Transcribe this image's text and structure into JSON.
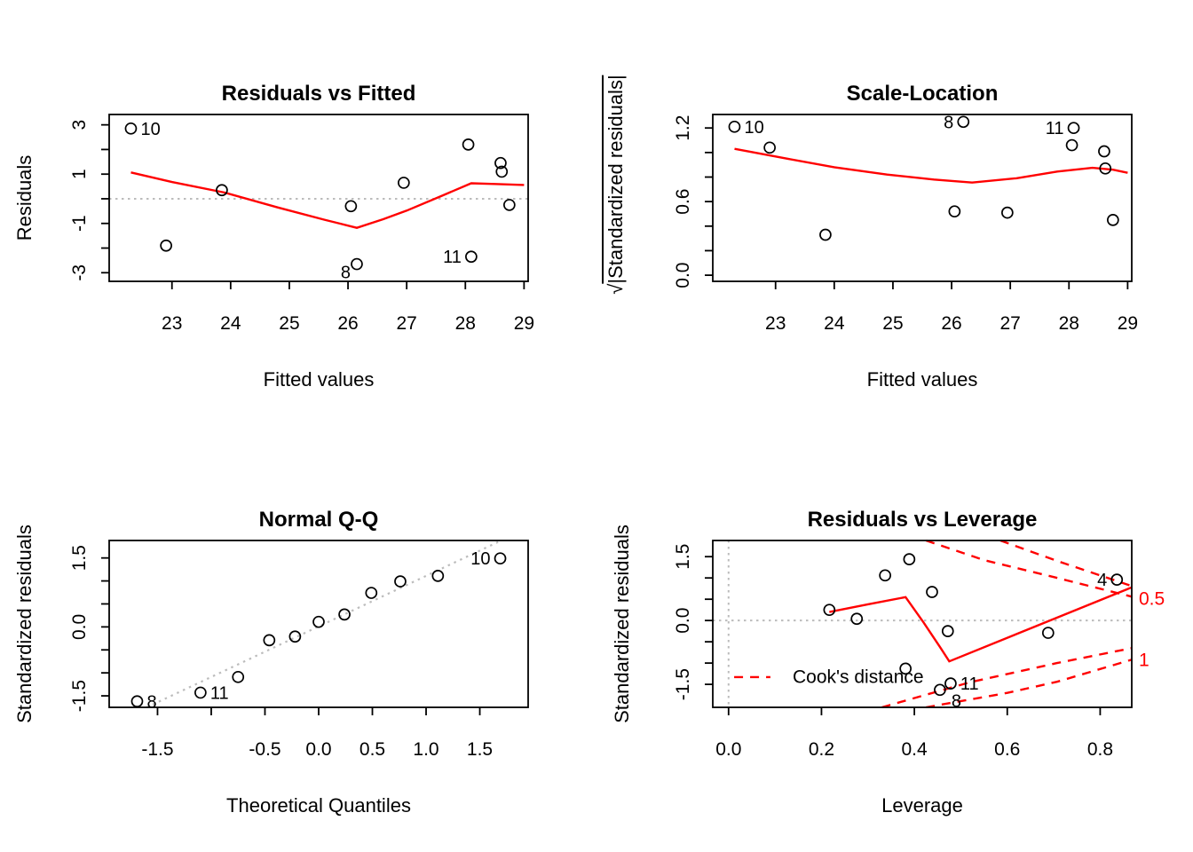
{
  "colors": {
    "points": "#000000",
    "smoother": "#ff0000",
    "cook": "#ff0000",
    "reference": "#bcbcbc",
    "text": "#000000",
    "background": "#ffffff"
  },
  "chart_data": [
    {
      "type": "scatter",
      "panel": "top-left",
      "title": "Residuals vs Fitted",
      "xlabel": "Fitted values",
      "ylabel": "Residuals",
      "xlim": [
        21.93,
        29.07
      ],
      "ylim": [
        -3.35,
        3.42
      ],
      "xticks": [
        23,
        24,
        25,
        26,
        27,
        28,
        29
      ],
      "xtick_labels": [
        "23",
        "24",
        "25",
        "26",
        "27",
        "28",
        "29"
      ],
      "yticks": [
        -3,
        -2,
        -1,
        0,
        1,
        2,
        3
      ],
      "ytick_labels": [
        "-3",
        "",
        "-1",
        "",
        "1",
        "",
        "3"
      ],
      "grid": false,
      "points": [
        {
          "x": 22.3,
          "y": 2.85,
          "label": "10",
          "side": "right"
        },
        {
          "x": 22.9,
          "y": -1.9
        },
        {
          "x": 23.85,
          "y": 0.35
        },
        {
          "x": 26.05,
          "y": -0.3
        },
        {
          "x": 26.15,
          "y": -2.65,
          "label": "8",
          "side": "left-down"
        },
        {
          "x": 26.95,
          "y": 0.65
        },
        {
          "x": 28.05,
          "y": 2.2
        },
        {
          "x": 28.1,
          "y": -2.35,
          "label": "11",
          "side": "left"
        },
        {
          "x": 28.6,
          "y": 1.45
        },
        {
          "x": 28.62,
          "y": 1.1
        },
        {
          "x": 28.75,
          "y": -0.25
        }
      ],
      "smoother": [
        [
          22.3,
          1.07
        ],
        [
          23.0,
          0.68
        ],
        [
          23.9,
          0.25
        ],
        [
          24.8,
          -0.35
        ],
        [
          25.6,
          -0.85
        ],
        [
          26.15,
          -1.18
        ],
        [
          26.6,
          -0.83
        ],
        [
          27.0,
          -0.48
        ],
        [
          27.6,
          0.12
        ],
        [
          28.1,
          0.63
        ],
        [
          28.5,
          0.6
        ],
        [
          29.0,
          0.56
        ]
      ],
      "hlines": [
        0
      ]
    },
    {
      "type": "scatter",
      "panel": "top-right",
      "title": "Scale-Location",
      "xlabel": "Fitted values",
      "ylabel": "√|Standardized residuals|",
      "ylabel_radical": "√",
      "ylabel_radicand": "|Standardized residuals|",
      "xlim": [
        21.93,
        29.07
      ],
      "ylim": [
        -0.05,
        1.31
      ],
      "xticks": [
        23,
        24,
        25,
        26,
        27,
        28,
        29
      ],
      "xtick_labels": [
        "23",
        "24",
        "25",
        "26",
        "27",
        "28",
        "29"
      ],
      "yticks": [
        0,
        0.2,
        0.4,
        0.6,
        0.8,
        1.0,
        1.2
      ],
      "ytick_labels": [
        "0.0",
        "",
        "",
        "0.6",
        "",
        "",
        "1.2"
      ],
      "grid": false,
      "points": [
        {
          "x": 22.3,
          "y": 1.21,
          "label": "10",
          "side": "right"
        },
        {
          "x": 22.9,
          "y": 1.04
        },
        {
          "x": 23.85,
          "y": 0.33
        },
        {
          "x": 26.05,
          "y": 0.52
        },
        {
          "x": 26.2,
          "y": 1.25,
          "label": "8",
          "side": "left"
        },
        {
          "x": 26.95,
          "y": 0.51
        },
        {
          "x": 28.05,
          "y": 1.06
        },
        {
          "x": 28.08,
          "y": 1.2,
          "label": "11",
          "side": "left"
        },
        {
          "x": 28.6,
          "y": 1.01
        },
        {
          "x": 28.62,
          "y": 0.87
        },
        {
          "x": 28.75,
          "y": 0.45
        }
      ],
      "smoother": [
        [
          22.3,
          1.03
        ],
        [
          23.2,
          0.95
        ],
        [
          24.0,
          0.88
        ],
        [
          24.9,
          0.82
        ],
        [
          25.7,
          0.78
        ],
        [
          26.35,
          0.755
        ],
        [
          27.1,
          0.79
        ],
        [
          27.8,
          0.845
        ],
        [
          28.4,
          0.875
        ],
        [
          28.75,
          0.86
        ],
        [
          29.0,
          0.835
        ]
      ]
    },
    {
      "type": "scatter",
      "panel": "bottom-left",
      "title": "Normal Q-Q",
      "xlabel": "Theoretical Quantiles",
      "ylabel": "Standardized residuals",
      "xlim": [
        -1.95,
        1.95
      ],
      "ylim": [
        -1.75,
        1.88
      ],
      "xticks": [
        -1.5,
        -1,
        -0.5,
        0,
        0.5,
        1,
        1.5
      ],
      "xtick_labels": [
        "-1.5",
        "",
        "-0.5",
        "0.0",
        "0.5",
        "1.0",
        "1.5"
      ],
      "yticks": [
        -1.5,
        -1,
        -0.5,
        0,
        0.5,
        1,
        1.5
      ],
      "ytick_labels": [
        "-1.5",
        "",
        "",
        "0.0",
        "",
        "",
        "1.5"
      ],
      "grid": false,
      "points": [
        {
          "x": -1.69,
          "y": -1.62,
          "label": "8",
          "side": "right"
        },
        {
          "x": -1.1,
          "y": -1.43,
          "label": "11",
          "side": "right"
        },
        {
          "x": -0.75,
          "y": -1.09
        },
        {
          "x": -0.46,
          "y": -0.29
        },
        {
          "x": -0.22,
          "y": -0.21
        },
        {
          "x": 0.0,
          "y": 0.11
        },
        {
          "x": 0.24,
          "y": 0.27
        },
        {
          "x": 0.49,
          "y": 0.74
        },
        {
          "x": 0.76,
          "y": 0.99
        },
        {
          "x": 1.11,
          "y": 1.11
        },
        {
          "x": 1.69,
          "y": 1.49,
          "label": "10",
          "side": "left"
        }
      ],
      "ref_segment": {
        "x1": -1.6,
        "y1": -1.75,
        "x2": 1.7,
        "y2": 1.88
      }
    },
    {
      "type": "scatter",
      "panel": "bottom-right",
      "title": "Residuals vs Leverage",
      "xlabel": "Leverage",
      "ylabel": "Standardized residuals",
      "xlim": [
        -0.034,
        0.868
      ],
      "ylim": [
        -2.04,
        1.88
      ],
      "xticks": [
        0,
        0.2,
        0.4,
        0.6,
        0.8
      ],
      "xtick_labels": [
        "0.0",
        "0.2",
        "0.4",
        "0.6",
        "0.8"
      ],
      "yticks": [
        -1.5,
        -1,
        -0.5,
        0,
        0.5,
        1,
        1.5
      ],
      "ytick_labels": [
        "-1.5",
        "",
        "",
        "0.0",
        "",
        "",
        "1.5"
      ],
      "grid": false,
      "points": [
        {
          "x": 0.217,
          "y": 0.25
        },
        {
          "x": 0.276,
          "y": 0.04
        },
        {
          "x": 0.337,
          "y": 1.06
        },
        {
          "x": 0.389,
          "y": 1.44
        },
        {
          "x": 0.438,
          "y": 0.67
        },
        {
          "x": 0.472,
          "y": -0.25
        },
        {
          "x": 0.381,
          "y": -1.13
        },
        {
          "x": 0.455,
          "y": -1.63,
          "label": "8",
          "side": "below-right"
        },
        {
          "x": 0.478,
          "y": -1.48,
          "label": "11",
          "side": "right"
        },
        {
          "x": 0.688,
          "y": -0.29
        },
        {
          "x": 0.836,
          "y": 0.96,
          "label": "4",
          "side": "left"
        }
      ],
      "smoother": [
        [
          0.217,
          0.2
        ],
        [
          0.3,
          0.38
        ],
        [
          0.381,
          0.55
        ],
        [
          0.42,
          -0.05
        ],
        [
          0.455,
          -0.62
        ],
        [
          0.475,
          -0.96
        ],
        [
          0.868,
          0.78
        ]
      ],
      "hlines": [
        0
      ],
      "vlines": [
        0
      ],
      "cook_contours": [
        {
          "level": "0.5",
          "branch": "upper",
          "path": [
            [
              0.425,
              1.88
            ],
            [
              0.55,
              1.42
            ],
            [
              0.7,
              1.02
            ],
            [
              0.868,
              0.56
            ]
          ]
        },
        {
          "level": "1",
          "branch": "upper",
          "path": [
            [
              0.585,
              1.88
            ],
            [
              0.707,
              1.4
            ],
            [
              0.868,
              0.81
            ]
          ]
        },
        {
          "level": "0.5",
          "branch": "lower",
          "path": [
            [
              0.33,
              -2.04
            ],
            [
              0.52,
              -1.45
            ],
            [
              0.707,
              -1.0
            ],
            [
              0.868,
              -0.65
            ]
          ]
        },
        {
          "level": "1",
          "branch": "lower",
          "path": [
            [
              0.425,
              -2.04
            ],
            [
              0.6,
              -1.7
            ],
            [
              0.707,
              -1.44
            ],
            [
              0.868,
              -0.92
            ]
          ]
        }
      ],
      "contour_labels": [
        {
          "text": "0.5",
          "y": 0.5
        },
        {
          "text": "1",
          "y": -0.94
        }
      ],
      "legend": {
        "label": "Cook's distance",
        "x1": 0.012,
        "x2": 0.09,
        "y": -1.33,
        "text_x": 0.138
      }
    }
  ]
}
